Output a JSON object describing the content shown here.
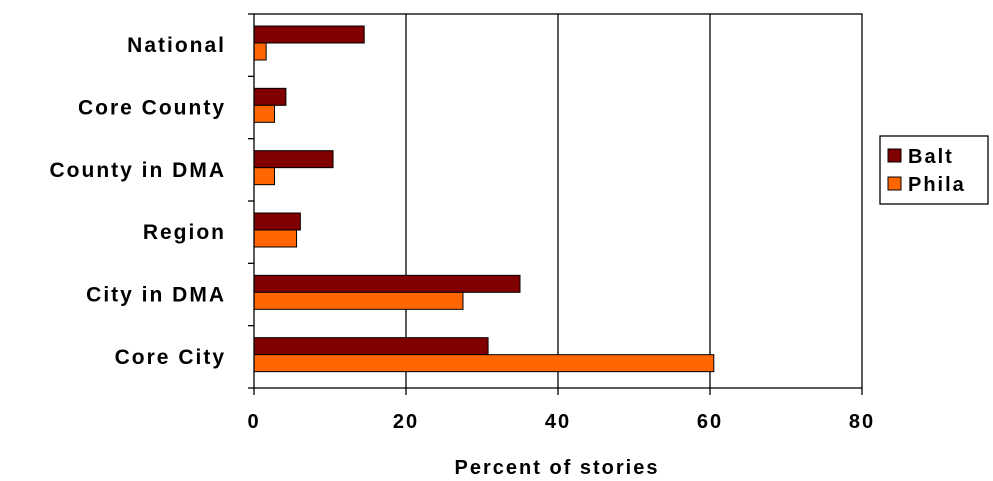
{
  "chart_data": {
    "type": "bar",
    "orientation": "horizontal",
    "title": "",
    "xlabel": "Percent of stories",
    "ylabel": "",
    "xlim": [
      0,
      80
    ],
    "xticks": [
      "0",
      "20",
      "40",
      "60",
      "80"
    ],
    "grid": "vertical",
    "legend_position": "right",
    "categories": [
      "National",
      "Core County",
      "County in DMA",
      "Region",
      "City in DMA",
      "Core City"
    ],
    "series": [
      {
        "name": "Balt",
        "color": "#800000",
        "values": [
          14.5,
          4.2,
          10.4,
          6.1,
          35.0,
          30.8
        ]
      },
      {
        "name": "Phila",
        "color": "#FF6600",
        "values": [
          1.6,
          2.7,
          2.7,
          5.6,
          27.5,
          60.5
        ]
      }
    ]
  }
}
